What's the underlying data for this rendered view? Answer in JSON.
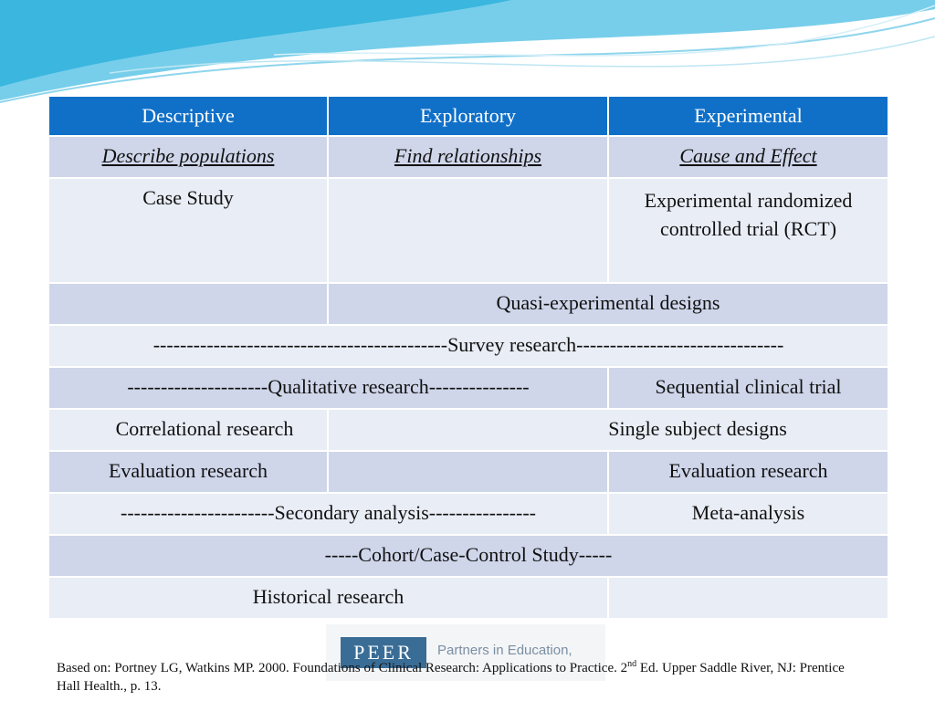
{
  "table": {
    "header": [
      "Descriptive",
      "Exploratory",
      "Experimental"
    ],
    "rows": [
      [
        "Describe populations",
        "Find relationships",
        "Cause and Effect"
      ],
      [
        "Case Study",
        "Experimental randomized controlled trial (RCT)"
      ],
      [
        "Quasi-experimental designs"
      ],
      [
        "--------------------------------------------Survey research-------------------------------"
      ],
      [
        "---------------------Qualitative research---------------",
        "Sequential clinical trial"
      ],
      [
        "Correlational research",
        "Single subject designs"
      ],
      [
        "Evaluation research",
        "Evaluation research"
      ],
      [
        "-----------------------Secondary analysis----------------",
        "Meta-analysis"
      ],
      [
        "-----Cohort/Case-Control Study-----"
      ],
      [
        "Historical research"
      ]
    ]
  },
  "logo": {
    "mark": "PEER",
    "text": "Partners in Education,"
  },
  "footnote": {
    "before": "Based on: Portney LG, Watkins MP.  2000. Foundations of Clinical Research: Applications to Practice. 2",
    "superscript": "nd",
    "after": " Ed.  Upper Saddle River, NJ: Prentice Hall Health., p. 13."
  }
}
